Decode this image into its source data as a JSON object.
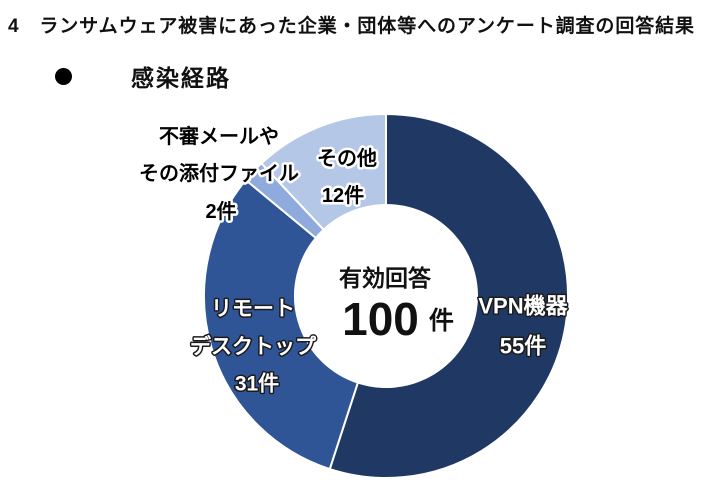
{
  "page": {
    "title": "4　ランサムウェア被害にあった企業・団体等へのアンケート調査の回答結果",
    "section_bullet_label": "感染経路"
  },
  "chart_data": {
    "type": "donut",
    "title": "感染経路",
    "total": 100,
    "unit": "件",
    "start_angle_deg": 0,
    "direction": "clockwise",
    "hole_ratio": 0.5,
    "legend": "none",
    "center": {
      "label": "有効回答",
      "value": "100",
      "unit": "件"
    },
    "segments": [
      {
        "label": "VPN機器",
        "value": 55,
        "count_label": "55件",
        "color": "#1F3864",
        "lines": [
          "VPN機器",
          "55件"
        ]
      },
      {
        "label": "リモートデスクトップ",
        "value": 31,
        "count_label": "31件",
        "color": "#2F5597",
        "lines": [
          "リモート",
          "デスクトップ",
          "31件"
        ]
      },
      {
        "label": "不審メールやその添付ファイル",
        "value": 2,
        "count_label": "2件",
        "color": "#8FAADC",
        "lines": [
          "不審メールや",
          "その添付ファイル",
          "2件"
        ]
      },
      {
        "label": "その他",
        "value": 12,
        "count_label": "12件",
        "color": "#B4C7E7",
        "lines": [
          "その他",
          "12件"
        ]
      }
    ]
  }
}
